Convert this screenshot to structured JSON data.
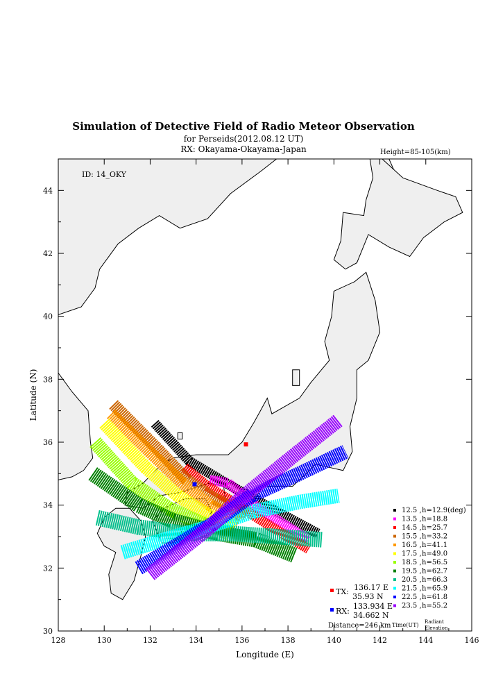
{
  "chart_data": {
    "type": "scatter",
    "title": "Simulation of Detective Field of Radio Meteor Observation",
    "subtitle": "for Perseids(2012.08.12 UT)",
    "rx_line": "RX: Okayama-Okayama-Japan",
    "height_note": "Height=85-105(km)",
    "id_label": "ID: 14_OKY",
    "xlabel": "Longitude (E)",
    "ylabel": "Latitude (N)",
    "xlim": [
      128,
      146
    ],
    "ylim": [
      30,
      45
    ],
    "xticks": [
      "128",
      "130",
      "132",
      "134",
      "136",
      "138",
      "140",
      "142",
      "144",
      "146"
    ],
    "yticks": [
      "30",
      "32",
      "34",
      "36",
      "38",
      "40",
      "42",
      "44"
    ],
    "tx": {
      "label": "TX:",
      "lon_text": "136.17 E",
      "lat_text": "35.93 N",
      "lon": 136.17,
      "lat": 35.93,
      "color": "#ff0000"
    },
    "rx": {
      "label": "RX:",
      "lon_text": "133.934 E",
      "lat_text": "34.662 N",
      "lon": 133.934,
      "lat": 34.662,
      "color": "#0000ff"
    },
    "distance": "Distance=246 km",
    "legend_time_label": "Time(UT)",
    "legend_elev_label_1": "Radiant",
    "legend_elev_label_2": "Elevation",
    "series": [
      {
        "time": "12.5",
        "h": "h=12.9(deg)",
        "color": "#000000",
        "band": [
          [
            132.2,
            36.6
          ],
          [
            133.7,
            35.4
          ],
          [
            135.3,
            34.7
          ],
          [
            137.5,
            33.8
          ],
          [
            139.3,
            33.1
          ]
        ],
        "w": 9
      },
      {
        "time": "13.5",
        "h": "h=18.8",
        "color": "#ff00ff",
        "band": [
          [
            134.6,
            34.8
          ],
          [
            135.4,
            34.7
          ],
          [
            136.7,
            33.9
          ],
          [
            138.9,
            32.9
          ]
        ],
        "w": 9
      },
      {
        "time": "14.5",
        "h": "h=25.7",
        "color": "#ff0000",
        "band": [
          [
            133.5,
            35.2
          ],
          [
            134.5,
            34.6
          ],
          [
            135.6,
            34.1
          ],
          [
            137.3,
            33.3
          ],
          [
            138.9,
            32.6
          ]
        ],
        "w": 9
      },
      {
        "time": "15.5",
        "h": "h=33.2",
        "color": "#cc6600",
        "band": [
          [
            130.4,
            37.2
          ],
          [
            132.3,
            35.8
          ],
          [
            133.6,
            34.8
          ],
          [
            134.8,
            34.2
          ],
          [
            136.2,
            33.7
          ]
        ],
        "w": 11
      },
      {
        "time": "16.5",
        "h": "h=41.1",
        "color": "#ff9900",
        "band": [
          [
            130.3,
            36.9
          ],
          [
            132.1,
            35.6
          ],
          [
            133.4,
            34.7
          ],
          [
            134.6,
            34.0
          ],
          [
            135.9,
            33.5
          ]
        ],
        "w": 11
      },
      {
        "time": "17.5",
        "h": "h=49.0",
        "color": "#ffff00",
        "band": [
          [
            130.0,
            36.6
          ],
          [
            131.8,
            35.2
          ],
          [
            133.2,
            34.3
          ],
          [
            134.5,
            33.7
          ],
          [
            135.7,
            33.3
          ]
        ],
        "w": 12
      },
      {
        "time": "18.5",
        "h": "h=56.5",
        "color": "#99ff00",
        "band": [
          [
            129.6,
            36.0
          ],
          [
            131.2,
            34.7
          ],
          [
            132.8,
            33.9
          ],
          [
            134.3,
            33.4
          ],
          [
            135.5,
            33.1
          ]
        ],
        "w": 13
      },
      {
        "time": "19.5",
        "h": "h=62.7",
        "color": "#008000",
        "band": [
          [
            129.5,
            35.0
          ],
          [
            131.5,
            34.0
          ],
          [
            133.0,
            33.5
          ],
          [
            135.0,
            33.1
          ],
          [
            136.6,
            32.9
          ],
          [
            138.3,
            32.4
          ]
        ],
        "w": 14
      },
      {
        "time": "20.5",
        "h": "h=66.3",
        "color": "#00c08c",
        "band": [
          [
            129.7,
            33.6
          ],
          [
            131.5,
            33.3
          ],
          [
            133.5,
            33.1
          ],
          [
            135.5,
            33.1
          ],
          [
            137.5,
            33.0
          ],
          [
            139.5,
            32.9
          ]
        ],
        "w": 14
      },
      {
        "time": "21.5",
        "h": "h=65.9",
        "color": "#00ffff",
        "band": [
          [
            130.8,
            32.5
          ],
          [
            132.6,
            32.9
          ],
          [
            134.5,
            33.3
          ],
          [
            136.5,
            33.8
          ],
          [
            138.5,
            34.1
          ],
          [
            140.2,
            34.3
          ]
        ],
        "w": 13
      },
      {
        "time": "22.5",
        "h": "h=61.8",
        "color": "#0000ff",
        "band": [
          [
            131.5,
            32.0
          ],
          [
            133.1,
            32.7
          ],
          [
            134.7,
            33.4
          ],
          [
            136.4,
            34.3
          ],
          [
            138.5,
            35.0
          ],
          [
            140.5,
            35.7
          ]
        ],
        "w": 13
      },
      {
        "time": "23.5",
        "h": "h=55.2",
        "color": "#9900ff",
        "band": [
          [
            132.0,
            31.8
          ],
          [
            133.4,
            32.6
          ],
          [
            134.6,
            33.3
          ],
          [
            135.6,
            34.0
          ],
          [
            136.6,
            34.6
          ],
          [
            138.3,
            35.6
          ],
          [
            140.2,
            36.7
          ]
        ],
        "w": 13
      }
    ],
    "grid": false,
    "legend_position": "bottom-right"
  }
}
